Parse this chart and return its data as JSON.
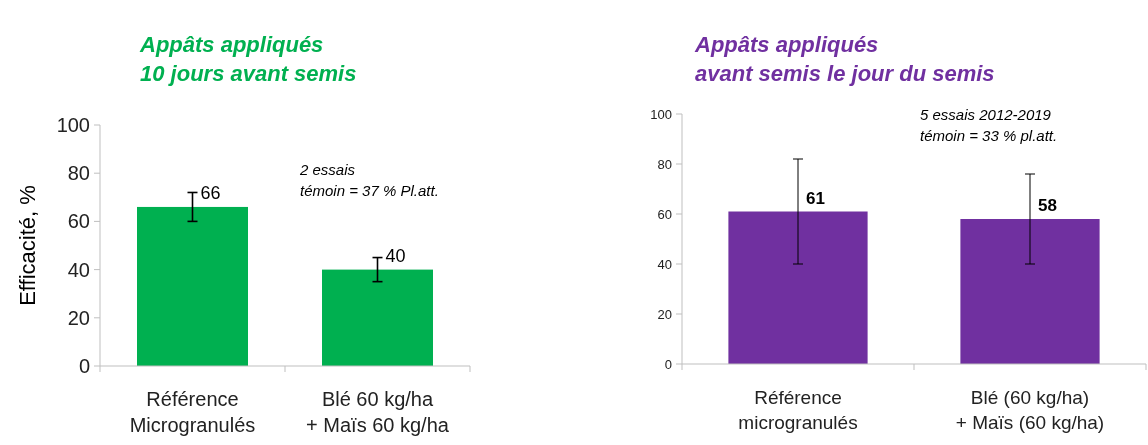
{
  "chart_data": [
    {
      "type": "bar",
      "title": "Appâts appliqués\n10 jours avant semis",
      "ylabel": "Efficacité, %",
      "categories": [
        "Référence\nMicrogranulés",
        "Blé 60 kg/ha\n+ Maïs 60 kg/ha"
      ],
      "values": [
        66,
        40
      ],
      "errors": [
        [
          60,
          72
        ],
        [
          35,
          45
        ]
      ],
      "color": "#00b050",
      "ylim": [
        0,
        100
      ],
      "yticks": [
        0,
        20,
        40,
        60,
        80,
        100
      ],
      "data_labels": true,
      "annotations": [
        "2 essais\ntémoin = 37 % Pl.att."
      ]
    },
    {
      "type": "bar",
      "title": "Appâts appliqués\navant semis le jour du semis",
      "categories": [
        "Référence\nmicrogranulés",
        "Blé (60 kg/ha)\n+ Maïs (60 kg/ha)"
      ],
      "values": [
        61,
        58
      ],
      "errors": [
        [
          40,
          82
        ],
        [
          40,
          76
        ]
      ],
      "color": "#7030a0",
      "ylim": [
        0,
        100
      ],
      "yticks": [
        0,
        20,
        40,
        60,
        80,
        100
      ],
      "data_labels": true,
      "annotations": [
        "5 essais 2012-2019\ntémoin = 33 % pl.att."
      ]
    }
  ]
}
